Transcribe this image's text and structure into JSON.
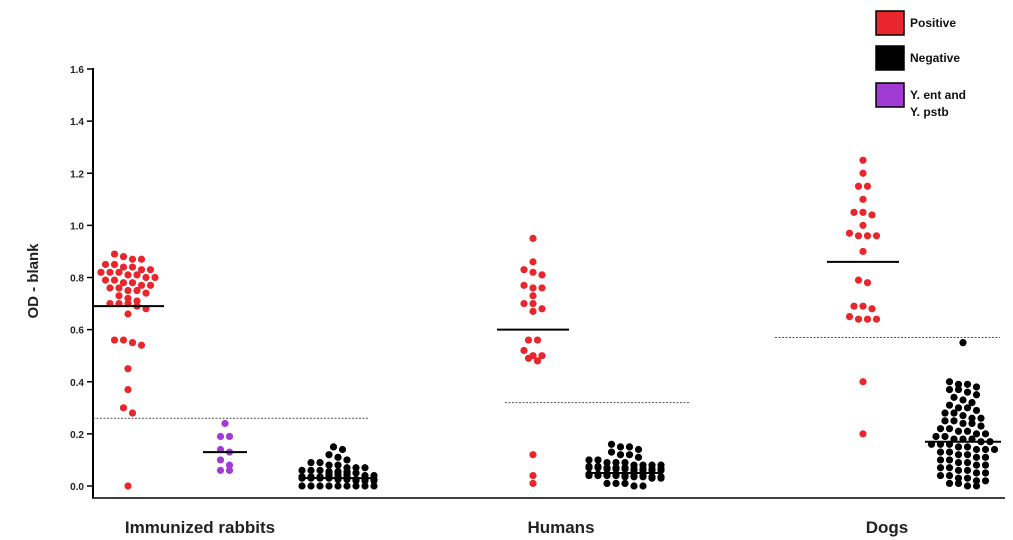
{
  "chart_data": {
    "type": "scatter",
    "ylabel": "OD - blank",
    "ylim": [
      0,
      1.6
    ],
    "yticks": [
      "0.0",
      "0.2",
      "0.4",
      "0.6",
      "0.8",
      "1.0",
      "1.2",
      "1.4",
      "1.6"
    ],
    "groups": [
      "Immunized rabbits",
      "Humans",
      "Dogs"
    ],
    "legend": [
      {
        "label_lines": [
          "Positive"
        ],
        "color": "#e8262b"
      },
      {
        "label_lines": [
          "Negative"
        ],
        "color": "#000000"
      },
      {
        "label_lines": [
          "Y. ent and",
          "Y. pstb"
        ],
        "color": "#a23ad4"
      }
    ],
    "series": [
      {
        "group": 0,
        "legend_index": 0,
        "mean": 0.69,
        "values": [
          0.89,
          0.88,
          0.87,
          0.87,
          0.85,
          0.85,
          0.84,
          0.84,
          0.83,
          0.83,
          0.82,
          0.82,
          0.82,
          0.81,
          0.81,
          0.8,
          0.8,
          0.79,
          0.79,
          0.78,
          0.78,
          0.77,
          0.77,
          0.76,
          0.76,
          0.75,
          0.75,
          0.74,
          0.73,
          0.72,
          0.71,
          0.7,
          0.7,
          0.7,
          0.69,
          0.68,
          0.66,
          0.56,
          0.56,
          0.55,
          0.54,
          0.45,
          0.37,
          0.3,
          0.28,
          0.0
        ]
      },
      {
        "group": 0,
        "legend_index": 2,
        "mean": 0.13,
        "values": [
          0.24,
          0.19,
          0.19,
          0.14,
          0.13,
          0.1,
          0.08,
          0.06,
          0.06
        ]
      },
      {
        "group": 0,
        "legend_index": 1,
        "mean": 0.03,
        "values": [
          0.15,
          0.14,
          0.12,
          0.11,
          0.1,
          0.09,
          0.09,
          0.08,
          0.08,
          0.07,
          0.07,
          0.07,
          0.06,
          0.06,
          0.06,
          0.05,
          0.05,
          0.05,
          0.05,
          0.04,
          0.04,
          0.04,
          0.04,
          0.04,
          0.03,
          0.03,
          0.03,
          0.03,
          0.03,
          0.03,
          0.02,
          0.02,
          0.02,
          0.02,
          0.02,
          0.02,
          0.02,
          0.01,
          0.01,
          0.01,
          0.01,
          0.01,
          0.01,
          0.01,
          0.01,
          0.0,
          0.0,
          0.0,
          0.0,
          0.0,
          0.0,
          0.0,
          0.0,
          0.0
        ]
      },
      {
        "group": 1,
        "legend_index": 0,
        "mean": 0.6,
        "values": [
          0.95,
          0.86,
          0.83,
          0.82,
          0.81,
          0.77,
          0.76,
          0.76,
          0.73,
          0.7,
          0.7,
          0.68,
          0.67,
          0.56,
          0.56,
          0.52,
          0.5,
          0.5,
          0.49,
          0.48,
          0.12,
          0.04,
          0.01
        ]
      },
      {
        "group": 1,
        "legend_index": 1,
        "mean": 0.05,
        "values": [
          0.16,
          0.15,
          0.15,
          0.14,
          0.13,
          0.12,
          0.12,
          0.11,
          0.1,
          0.1,
          0.09,
          0.09,
          0.09,
          0.08,
          0.08,
          0.08,
          0.08,
          0.07,
          0.07,
          0.07,
          0.07,
          0.07,
          0.06,
          0.06,
          0.06,
          0.06,
          0.06,
          0.06,
          0.05,
          0.05,
          0.05,
          0.05,
          0.05,
          0.05,
          0.05,
          0.04,
          0.04,
          0.04,
          0.04,
          0.04,
          0.04,
          0.04,
          0.03,
          0.03,
          0.03,
          0.03,
          0.03,
          0.03,
          0.02,
          0.02,
          0.02,
          0.02,
          0.02,
          0.01,
          0.01,
          0.01,
          0.0,
          0.0
        ]
      },
      {
        "group": 2,
        "legend_index": 0,
        "mean": 0.86,
        "values": [
          1.25,
          1.2,
          1.15,
          1.15,
          1.1,
          1.05,
          1.05,
          1.04,
          1.0,
          0.97,
          0.96,
          0.96,
          0.96,
          0.9,
          0.79,
          0.78,
          0.69,
          0.69,
          0.68,
          0.65,
          0.64,
          0.64,
          0.64,
          0.4,
          0.2
        ]
      },
      {
        "group": 2,
        "legend_index": 1,
        "mean": 0.17,
        "values": [
          0.55,
          0.4,
          0.39,
          0.39,
          0.38,
          0.37,
          0.37,
          0.36,
          0.35,
          0.34,
          0.33,
          0.32,
          0.31,
          0.3,
          0.3,
          0.29,
          0.28,
          0.28,
          0.27,
          0.26,
          0.26,
          0.25,
          0.25,
          0.24,
          0.24,
          0.23,
          0.22,
          0.22,
          0.21,
          0.21,
          0.2,
          0.2,
          0.19,
          0.19,
          0.18,
          0.18,
          0.18,
          0.17,
          0.17,
          0.16,
          0.16,
          0.16,
          0.15,
          0.15,
          0.14,
          0.14,
          0.14,
          0.13,
          0.13,
          0.12,
          0.12,
          0.11,
          0.11,
          0.1,
          0.1,
          0.09,
          0.09,
          0.08,
          0.08,
          0.07,
          0.07,
          0.06,
          0.06,
          0.05,
          0.05,
          0.04,
          0.04,
          0.03,
          0.03,
          0.02,
          0.02,
          0.01,
          0.01,
          0.0,
          0.0
        ]
      }
    ],
    "cutoffs": [
      {
        "group": 0,
        "value": 0.26
      },
      {
        "group": 1,
        "value": 0.32
      },
      {
        "group": 2,
        "value": 0.57
      }
    ]
  }
}
